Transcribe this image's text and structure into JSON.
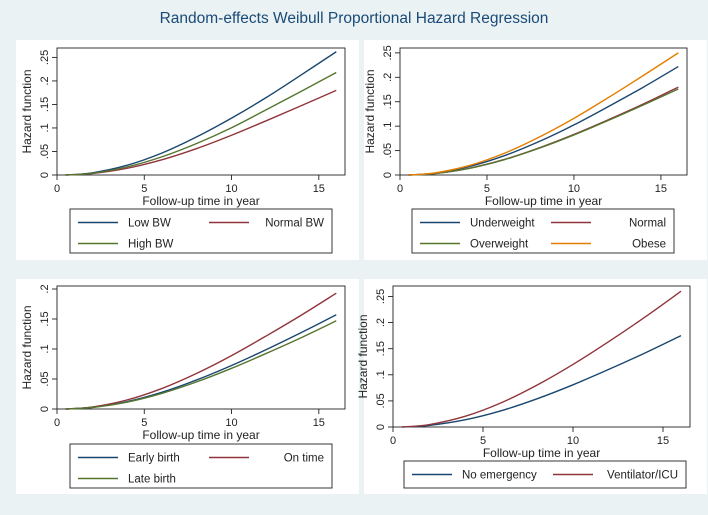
{
  "title": "Random-effects Weibull Proportional Hazard Regression",
  "colors": {
    "background": "#eaf2f3",
    "plot_background": "#ffffff",
    "navy": "#1a476f",
    "maroon": "#90353b",
    "olive": "#55752f",
    "orange": "#e37e00"
  },
  "chart_data": [
    {
      "type": "line",
      "xlabel": "Follow-up time in year",
      "ylabel": "Hazard function",
      "xlim": [
        0,
        16.5
      ],
      "ylim": [
        0,
        0.27
      ],
      "x_ticks": [
        0,
        5,
        10,
        15
      ],
      "y_ticks": [
        0,
        0.05,
        0.1,
        0.15,
        0.2,
        0.25
      ],
      "y_tick_labels": [
        "0",
        ".05",
        ".1",
        ".15",
        ".2",
        ".25"
      ],
      "x": [
        0.5,
        2,
        4,
        6,
        8,
        10,
        12,
        14,
        16
      ],
      "series": [
        {
          "name": "Low BW",
          "color": "#1a476f",
          "values": [
            0.0,
            0.0045,
            0.0205,
            0.0465,
            0.081,
            0.121,
            0.165,
            0.213,
            0.262
          ]
        },
        {
          "name": "Normal BW",
          "color": "#90353b",
          "values": [
            0.0,
            0.0031,
            0.0142,
            0.0322,
            0.0562,
            0.0845,
            0.1155,
            0.1475,
            0.18
          ]
        },
        {
          "name": "High BW",
          "color": "#55752f",
          "values": [
            0.0,
            0.0037,
            0.017,
            0.0385,
            0.067,
            0.1005,
            0.139,
            0.178,
            0.218
          ]
        }
      ],
      "legend": {
        "placement": "bottom",
        "columns": 2
      }
    },
    {
      "type": "line",
      "xlabel": "Follow-up time in year",
      "ylabel": "Hazard function",
      "xlim": [
        0,
        16.5
      ],
      "ylim": [
        0,
        0.26
      ],
      "x_ticks": [
        0,
        5,
        10,
        15
      ],
      "y_ticks": [
        0,
        0.05,
        0.1,
        0.15,
        0.2,
        0.25
      ],
      "y_tick_labels": [
        "0",
        ".05",
        ".1",
        ".15",
        ".2",
        ".25"
      ],
      "x": [
        0.5,
        2,
        4,
        6,
        8,
        10,
        12,
        14,
        16
      ],
      "series": [
        {
          "name": "Underweight",
          "color": "#1a476f",
          "values": [
            0.0,
            0.0038,
            0.0175,
            0.0395,
            0.0685,
            0.1025,
            0.1405,
            0.18,
            0.222
          ]
        },
        {
          "name": "Normal",
          "color": "#90353b",
          "values": [
            0.0,
            0.003,
            0.014,
            0.0318,
            0.0555,
            0.083,
            0.1135,
            0.1455,
            0.18
          ]
        },
        {
          "name": "Overweight",
          "color": "#55752f",
          "values": [
            0.0,
            0.003,
            0.0138,
            0.0314,
            0.0548,
            0.082,
            0.112,
            0.1435,
            0.176
          ]
        },
        {
          "name": "Obese",
          "color": "#e37e00",
          "values": [
            0.0,
            0.0043,
            0.0196,
            0.0445,
            0.0775,
            0.116,
            0.159,
            0.204,
            0.25
          ]
        }
      ],
      "legend": {
        "placement": "bottom",
        "columns": 2
      }
    },
    {
      "type": "line",
      "xlabel": "Follow-up time in year",
      "ylabel": "Hazard function",
      "xlim": [
        0,
        16.5
      ],
      "ylim": [
        0,
        0.205
      ],
      "x_ticks": [
        0,
        5,
        10,
        15
      ],
      "y_ticks": [
        0,
        0.05,
        0.1,
        0.15,
        0.2
      ],
      "y_tick_labels": [
        "0",
        ".05",
        ".1",
        ".15",
        ".2"
      ],
      "x": [
        0.5,
        2,
        4,
        6,
        8,
        10,
        12,
        14,
        16
      ],
      "series": [
        {
          "name": "Early birth",
          "color": "#1a476f",
          "values": [
            0.0,
            0.0027,
            0.0122,
            0.0278,
            0.0484,
            0.0725,
            0.0992,
            0.1275,
            0.157
          ]
        },
        {
          "name": "On time",
          "color": "#90353b",
          "values": [
            0.0,
            0.0033,
            0.015,
            0.0341,
            0.0594,
            0.089,
            0.122,
            0.1565,
            0.193
          ]
        },
        {
          "name": "Late birth",
          "color": "#55752f",
          "values": [
            0.0,
            0.0025,
            0.0114,
            0.026,
            0.0452,
            0.0678,
            0.0928,
            0.119,
            0.147
          ]
        }
      ],
      "legend": {
        "placement": "bottom",
        "columns": 2
      }
    },
    {
      "type": "line",
      "xlabel": "Follow-up time in year",
      "ylabel": "Hazard function",
      "xlim": [
        0,
        16.5
      ],
      "ylim": [
        0,
        0.27
      ],
      "x_ticks": [
        0,
        5,
        10,
        15
      ],
      "y_ticks": [
        0,
        0.05,
        0.1,
        0.15,
        0.2,
        0.25
      ],
      "y_tick_labels": [
        "0",
        ".05",
        ".1",
        ".15",
        ".2",
        ".25"
      ],
      "x": [
        0.5,
        2,
        4,
        6,
        8,
        10,
        12,
        14,
        16
      ],
      "series": [
        {
          "name": "No emergency",
          "color": "#1a476f",
          "values": [
            0.0,
            0.003,
            0.0137,
            0.031,
            0.054,
            0.0808,
            0.1105,
            0.1418,
            0.175
          ]
        },
        {
          "name": "Ventilator/ICU",
          "color": "#90353b",
          "values": [
            0.0,
            0.0045,
            0.0204,
            0.0462,
            0.0802,
            0.1198,
            0.1638,
            0.2105,
            0.26
          ]
        }
      ],
      "legend": {
        "placement": "bottom",
        "columns": 2
      }
    }
  ]
}
